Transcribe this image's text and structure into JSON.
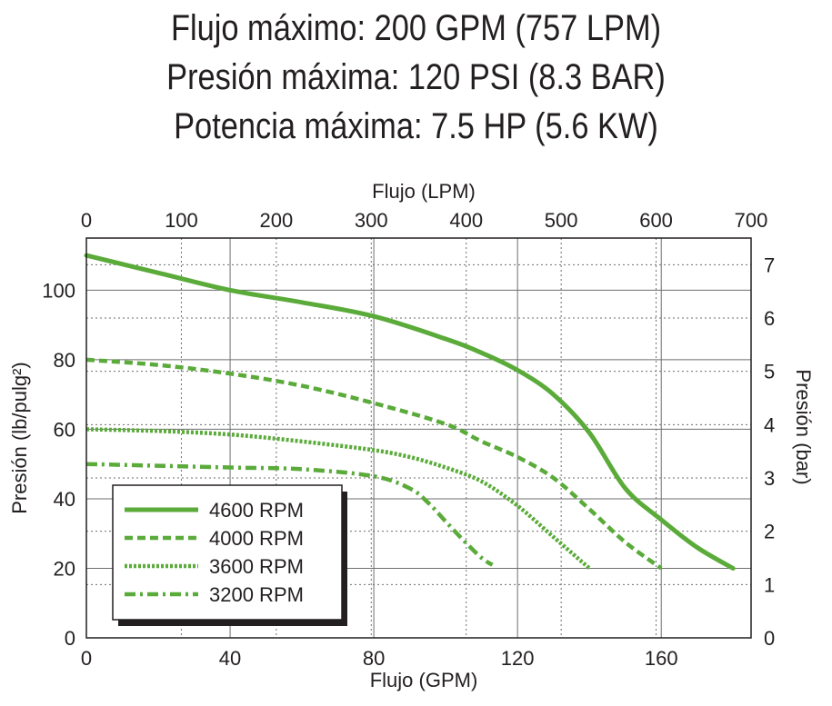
{
  "header": {
    "line1": "Flujo máximo: 200 GPM (757 LPM)",
    "line2": "Presión máxima: 120 PSI (8.3 BAR)",
    "line3": "Potencia máxima: 7.5 HP (5.6 KW)"
  },
  "colors": {
    "series": "#5aab3a",
    "grid": "#6d6e71",
    "text": "#231f20"
  },
  "chart_data": {
    "type": "line",
    "title": "",
    "xlabel": "Flujo (GPM)",
    "ylabel": "Presión (lb/pulg²)",
    "x2label": "Flujo (LPM)",
    "y2label": "Presión (bar)",
    "xlim": [
      0,
      185
    ],
    "ylim": [
      0,
      115
    ],
    "x2lim": [
      0,
      700
    ],
    "y2lim": [
      0,
      7.5
    ],
    "xticks": [
      0,
      40,
      80,
      120,
      160
    ],
    "yticks": [
      0,
      20,
      40,
      60,
      80,
      100
    ],
    "x2ticks": [
      0,
      100,
      200,
      300,
      400,
      500,
      600,
      700
    ],
    "y2ticks": [
      0,
      1,
      2,
      3,
      4,
      5,
      6,
      7
    ],
    "grid": true,
    "legend_position": "bottom-left",
    "series": [
      {
        "name": "4600 RPM",
        "style": "solid",
        "x": [
          0,
          20,
          40,
          60,
          80,
          100,
          110,
          120,
          130,
          140,
          150,
          160,
          170,
          180
        ],
        "y": [
          110,
          105,
          100,
          96.5,
          92.5,
          86,
          82,
          77,
          70,
          59,
          43,
          34,
          26,
          20
        ]
      },
      {
        "name": "4000 RPM",
        "style": "dashed",
        "x": [
          0,
          20,
          40,
          60,
          80,
          100,
          110,
          120,
          130,
          140,
          150,
          160
        ],
        "y": [
          80,
          78.5,
          76,
          72.5,
          67.5,
          61.5,
          56.5,
          52,
          46,
          37,
          27.5,
          20
        ]
      },
      {
        "name": "3600 RPM",
        "style": "dotted",
        "x": [
          0,
          20,
          40,
          60,
          80,
          90,
          100,
          110,
          120,
          130,
          140
        ],
        "y": [
          60,
          59.5,
          58.5,
          56.5,
          54,
          52,
          49,
          45,
          38,
          29,
          20
        ]
      },
      {
        "name": "3200 RPM",
        "style": "dashdot",
        "x": [
          0,
          20,
          40,
          60,
          80,
          90,
          95,
          100,
          105,
          110,
          113
        ],
        "y": [
          50,
          49.5,
          49,
          48.5,
          46.5,
          43,
          39,
          33.5,
          28,
          23,
          21
        ]
      }
    ]
  }
}
